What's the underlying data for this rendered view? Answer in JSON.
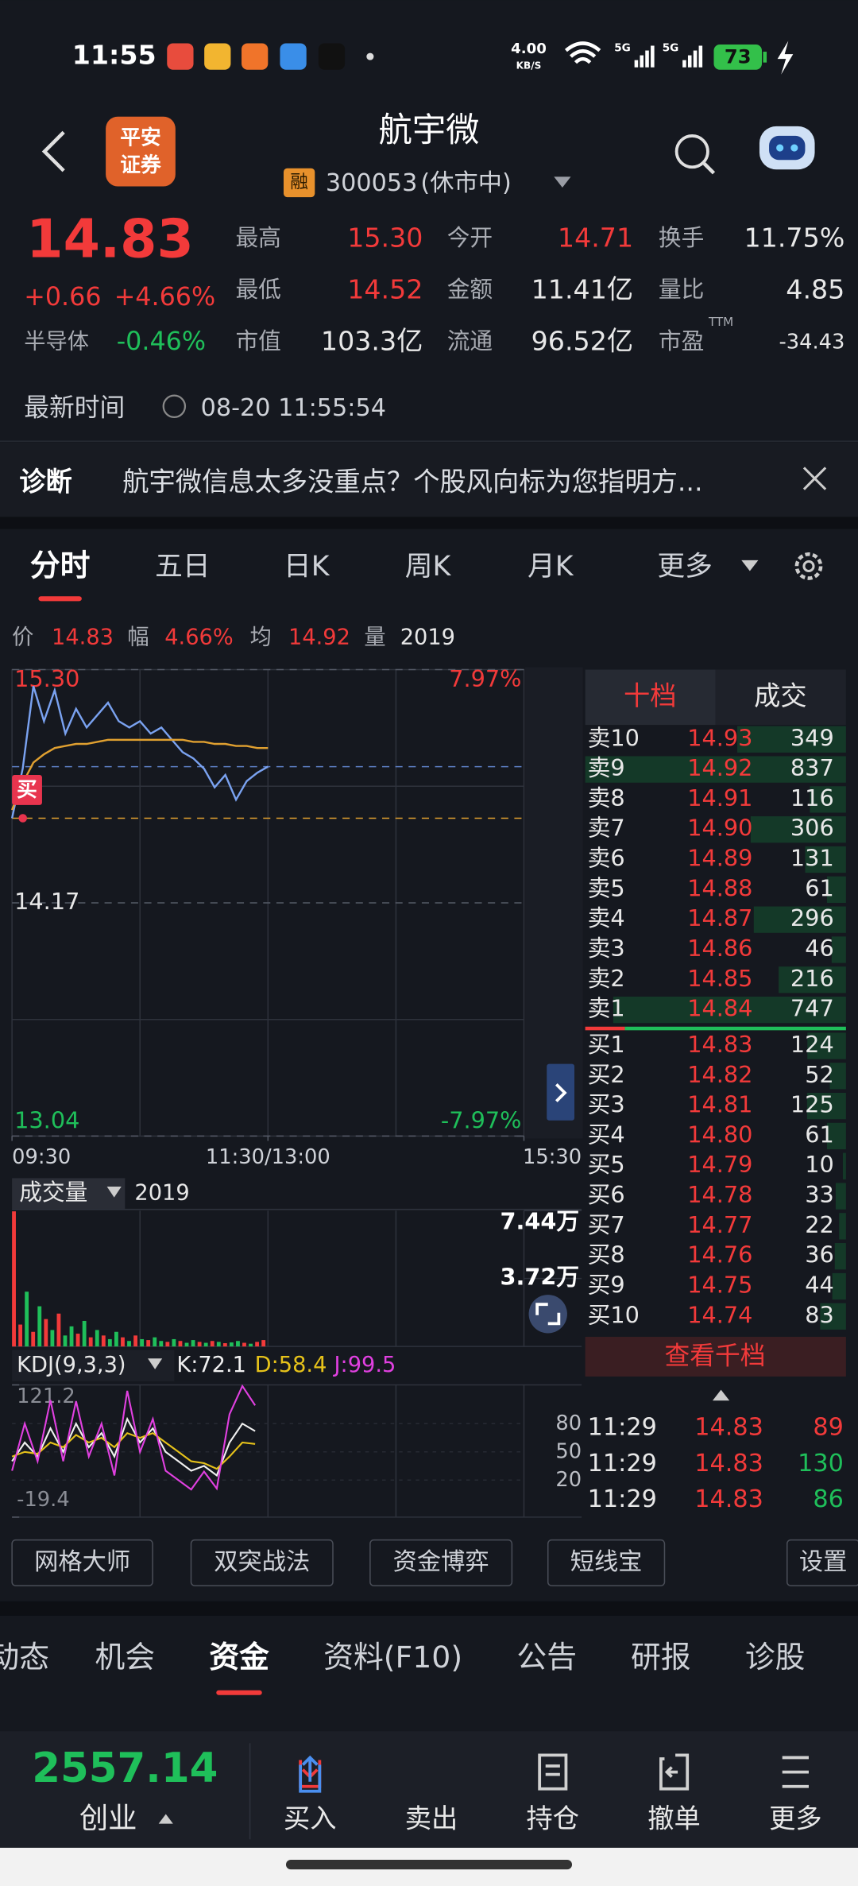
{
  "status": {
    "time": "11:55",
    "speed": "4.00",
    "speed_unit": "KB/S",
    "net1": "5G",
    "net2": "5G",
    "battery": "73"
  },
  "header": {
    "logo": [
      "平安",
      "证券"
    ],
    "title": "航宇微",
    "tag": "融",
    "code": "300053",
    "state": "(休市中)"
  },
  "quote": {
    "price": "14.83",
    "change": "+0.66",
    "percent": "+4.66%",
    "sector": "半导体",
    "sector_percent": "-0.46%",
    "stats": [
      {
        "label": "最高",
        "value": "15.30",
        "color": "#f23a3a"
      },
      {
        "label": "今开",
        "value": "14.71",
        "color": "#f23a3a"
      },
      {
        "label": "换手",
        "value": "11.75%",
        "color": "#e8e8e8"
      },
      {
        "label": "最低",
        "value": "14.52",
        "color": "#f23a3a"
      },
      {
        "label": "金额",
        "value": "11.41亿",
        "color": "#e8e8e8"
      },
      {
        "label": "量比",
        "value": "4.85",
        "color": "#e8e8e8"
      },
      {
        "label": "市值",
        "value": "103.3亿",
        "color": "#e8e8e8"
      },
      {
        "label": "流通",
        "value": "96.52亿",
        "color": "#e8e8e8"
      },
      {
        "label": "市盈",
        "value": "-34.43",
        "color": "#e8e8e8"
      }
    ],
    "pe_suffix": "TTM"
  },
  "update": {
    "label": "最新时间",
    "time": "08-20 11:55:54"
  },
  "diagnosis": {
    "label": "诊断",
    "text": "航宇微信息太多没重点？个股风向标为您指明方..."
  },
  "tabs": {
    "items": [
      "分时",
      "五日",
      "日K",
      "周K",
      "月K",
      "更多"
    ],
    "active": 0
  },
  "info_bar": [
    {
      "label": "价",
      "value": "14.83",
      "color": "#f23a3a"
    },
    {
      "label": "幅",
      "value": "4.66%",
      "color": "#f23a3a"
    },
    {
      "label": "均",
      "value": "14.92",
      "color": "#f23a3a"
    },
    {
      "label": "量",
      "value": "2019",
      "color": "#e8e8e8"
    }
  ],
  "chart_data": [
    {
      "type": "line",
      "x": [
        0,
        5,
        10,
        15,
        20,
        25,
        30,
        35,
        40,
        45,
        50,
        55,
        60,
        65,
        70,
        75,
        80,
        85,
        90,
        95,
        100,
        105,
        110,
        115,
        120
      ],
      "xlim": [
        0,
        240
      ],
      "xticks": [
        {
          "value": 0,
          "label": "09:30"
        },
        {
          "value": 120,
          "label": "11:30/13:00"
        },
        {
          "value": 240,
          "label": "15:30"
        }
      ],
      "ylim": [
        13.04,
        15.3
      ],
      "yticks": [
        {
          "value": 15.3,
          "label": "15.30"
        },
        14.17,
        13.04
      ],
      "tick_colors": [
        "#f23a3a",
        "#e8e8e8",
        "#1fbf5a"
      ],
      "y2lim": [
        -7.97,
        7.97
      ],
      "y2ticks": [
        {
          "value": 7.97,
          "label": "7.97%"
        },
        {
          "value": -7.97,
          "label": "-7.97%"
        }
      ],
      "y2tick_colors": [
        "#f23a3a",
        "#1fbf5a"
      ],
      "series": [
        {
          "color": "#7aa2f0",
          "values": [
            14.58,
            14.82,
            15.22,
            15.05,
            15.2,
            14.99,
            15.11,
            15.02,
            15.08,
            15.14,
            15.05,
            15.02,
            15.05,
            14.99,
            15.02,
            14.96,
            14.9,
            14.87,
            14.82,
            14.73,
            14.79,
            14.67,
            14.76,
            14.8,
            14.83
          ]
        },
        {
          "color": "#e0a030",
          "values": [
            14.62,
            14.75,
            14.85,
            14.89,
            14.92,
            14.93,
            14.94,
            14.94,
            14.95,
            14.96,
            14.96,
            14.96,
            14.96,
            14.96,
            14.96,
            14.96,
            14.96,
            14.95,
            14.95,
            14.94,
            14.94,
            14.93,
            14.93,
            14.92,
            14.92
          ]
        }
      ],
      "marker": {
        "label": "买",
        "color": "#e8344e"
      }
    },
    {
      "type": "bar",
      "title": "成交量",
      "total": 2019,
      "x": [
        0,
        3,
        6,
        9,
        12,
        15,
        18,
        21,
        24,
        27,
        30,
        33,
        36,
        39,
        42,
        45,
        48,
        51,
        54,
        57,
        60,
        63,
        66,
        69,
        72,
        75,
        78,
        81,
        84,
        87,
        90,
        93,
        96,
        99,
        102,
        105,
        108,
        111,
        114,
        117
      ],
      "xlim": [
        0,
        240
      ],
      "values": [
        74000,
        12000,
        30000,
        8000,
        22000,
        15000,
        9000,
        18000,
        6000,
        11000,
        7000,
        14000,
        5000,
        9000,
        6000,
        4000,
        8000,
        5000,
        3000,
        6000,
        4000,
        3500,
        5000,
        3000,
        2500,
        4000,
        3000,
        2000,
        3500,
        2500,
        2000,
        3000,
        2500,
        1800,
        2200,
        3000,
        2000,
        1500,
        2500,
        3500
      ],
      "colors": [
        "#f23a3a",
        "#f23a3a",
        "#1fbf5a",
        "#f23a3a",
        "#1fbf5a",
        "#f23a3a",
        "#1fbf5a",
        "#f23a3a",
        "#1fbf5a",
        "#1fbf5a",
        "#f23a3a",
        "#1fbf5a",
        "#f23a3a",
        "#1fbf5a",
        "#f23a3a",
        "#1fbf5a",
        "#1fbf5a",
        "#f23a3a",
        "#1fbf5a",
        "#f23a3a",
        "#1fbf5a",
        "#f23a3a",
        "#1fbf5a",
        "#1fbf5a",
        "#f23a3a",
        "#1fbf5a",
        "#f23a3a",
        "#1fbf5a",
        "#1fbf5a",
        "#f23a3a",
        "#1fbf5a",
        "#f23a3a",
        "#1fbf5a",
        "#f23a3a",
        "#1fbf5a",
        "#1fbf5a",
        "#f23a3a",
        "#1fbf5a",
        "#f23a3a",
        "#f23a3a"
      ],
      "ylim": [
        0,
        74400
      ],
      "yticks": [
        {
          "value": 74400,
          "label": "7.44万"
        },
        {
          "value": 37200,
          "label": "3.72万"
        }
      ]
    },
    {
      "type": "line",
      "title": "KDJ(9,3,3)",
      "readouts": [
        "K:72.1",
        "D:58.4",
        "J:99.5"
      ],
      "x": [
        0,
        6,
        12,
        18,
        24,
        30,
        36,
        42,
        48,
        54,
        60,
        66,
        72,
        78,
        84,
        90,
        96,
        102,
        108,
        114
      ],
      "xlim": [
        0,
        240
      ],
      "ylim": [
        -19.4,
        121.2
      ],
      "yticks": [
        121.2,
        -19.4
      ],
      "y2lim": [
        -19.4,
        121.2
      ],
      "y2ticks": [
        80,
        50,
        20
      ],
      "series": [
        {
          "color": "#f0f0f0",
          "values": [
            40,
            60,
            45,
            75,
            50,
            80,
            55,
            70,
            45,
            85,
            60,
            75,
            50,
            40,
            30,
            35,
            25,
            60,
            80,
            72.1
          ]
        },
        {
          "color": "#e6c21a",
          "values": [
            45,
            50,
            48,
            60,
            55,
            68,
            60,
            65,
            55,
            70,
            65,
            70,
            60,
            50,
            40,
            38,
            32,
            45,
            60,
            58.4
          ]
        },
        {
          "color": "#e040e0",
          "values": [
            30,
            80,
            40,
            105,
            40,
            104,
            45,
            80,
            25,
            115,
            50,
            85,
            30,
            20,
            10,
            29,
            11,
            90,
            120,
            99.5
          ]
        }
      ]
    }
  ],
  "order_book": {
    "tabs": [
      "十档",
      "成交"
    ],
    "active": 0,
    "sells": [
      {
        "label": "卖10",
        "price": "14.93",
        "volume": 349
      },
      {
        "label": "卖9",
        "price": "14.92",
        "volume": 837
      },
      {
        "label": "卖8",
        "price": "14.91",
        "volume": 116
      },
      {
        "label": "卖7",
        "price": "14.90",
        "volume": 306
      },
      {
        "label": "卖6",
        "price": "14.89",
        "volume": 131
      },
      {
        "label": "卖5",
        "price": "14.88",
        "volume": 61
      },
      {
        "label": "卖4",
        "price": "14.87",
        "volume": 296
      },
      {
        "label": "卖3",
        "price": "14.86",
        "volume": 46
      },
      {
        "label": "卖2",
        "price": "14.85",
        "volume": 216
      },
      {
        "label": "卖1",
        "price": "14.84",
        "volume": 747
      }
    ],
    "buys": [
      {
        "label": "买1",
        "price": "14.83",
        "volume": 124
      },
      {
        "label": "买2",
        "price": "14.82",
        "volume": 52
      },
      {
        "label": "买3",
        "price": "14.81",
        "volume": 125
      },
      {
        "label": "买4",
        "price": "14.80",
        "volume": 61
      },
      {
        "label": "买5",
        "price": "14.79",
        "volume": 10
      },
      {
        "label": "买6",
        "price": "14.78",
        "volume": 33
      },
      {
        "label": "买7",
        "price": "14.77",
        "volume": 22
      },
      {
        "label": "买8",
        "price": "14.76",
        "volume": 36
      },
      {
        "label": "买9",
        "price": "14.75",
        "volume": 44
      },
      {
        "label": "买10",
        "price": "14.74",
        "volume": 83
      }
    ],
    "more": "查看千档"
  },
  "trades": [
    {
      "time": "11:29",
      "price": "14.83",
      "volume": "89",
      "color": "#f23a3a"
    },
    {
      "time": "11:29",
      "price": "14.83",
      "volume": "130",
      "color": "#1fbf5a"
    },
    {
      "time": "11:29",
      "price": "14.83",
      "volume": "86",
      "color": "#1fbf5a"
    }
  ],
  "tools": [
    "网格大师",
    "双突战法",
    "资金博弈",
    "短线宝",
    "设置"
  ],
  "sections": {
    "items": [
      "动态",
      "机会",
      "资金",
      "资料(F10)",
      "公告",
      "研报",
      "诊股"
    ],
    "active": 2
  },
  "footer": {
    "index_value": "2557.14",
    "index_name": "创业",
    "actions": [
      "买入",
      "卖出",
      "持仓",
      "撤单",
      "更多"
    ]
  }
}
